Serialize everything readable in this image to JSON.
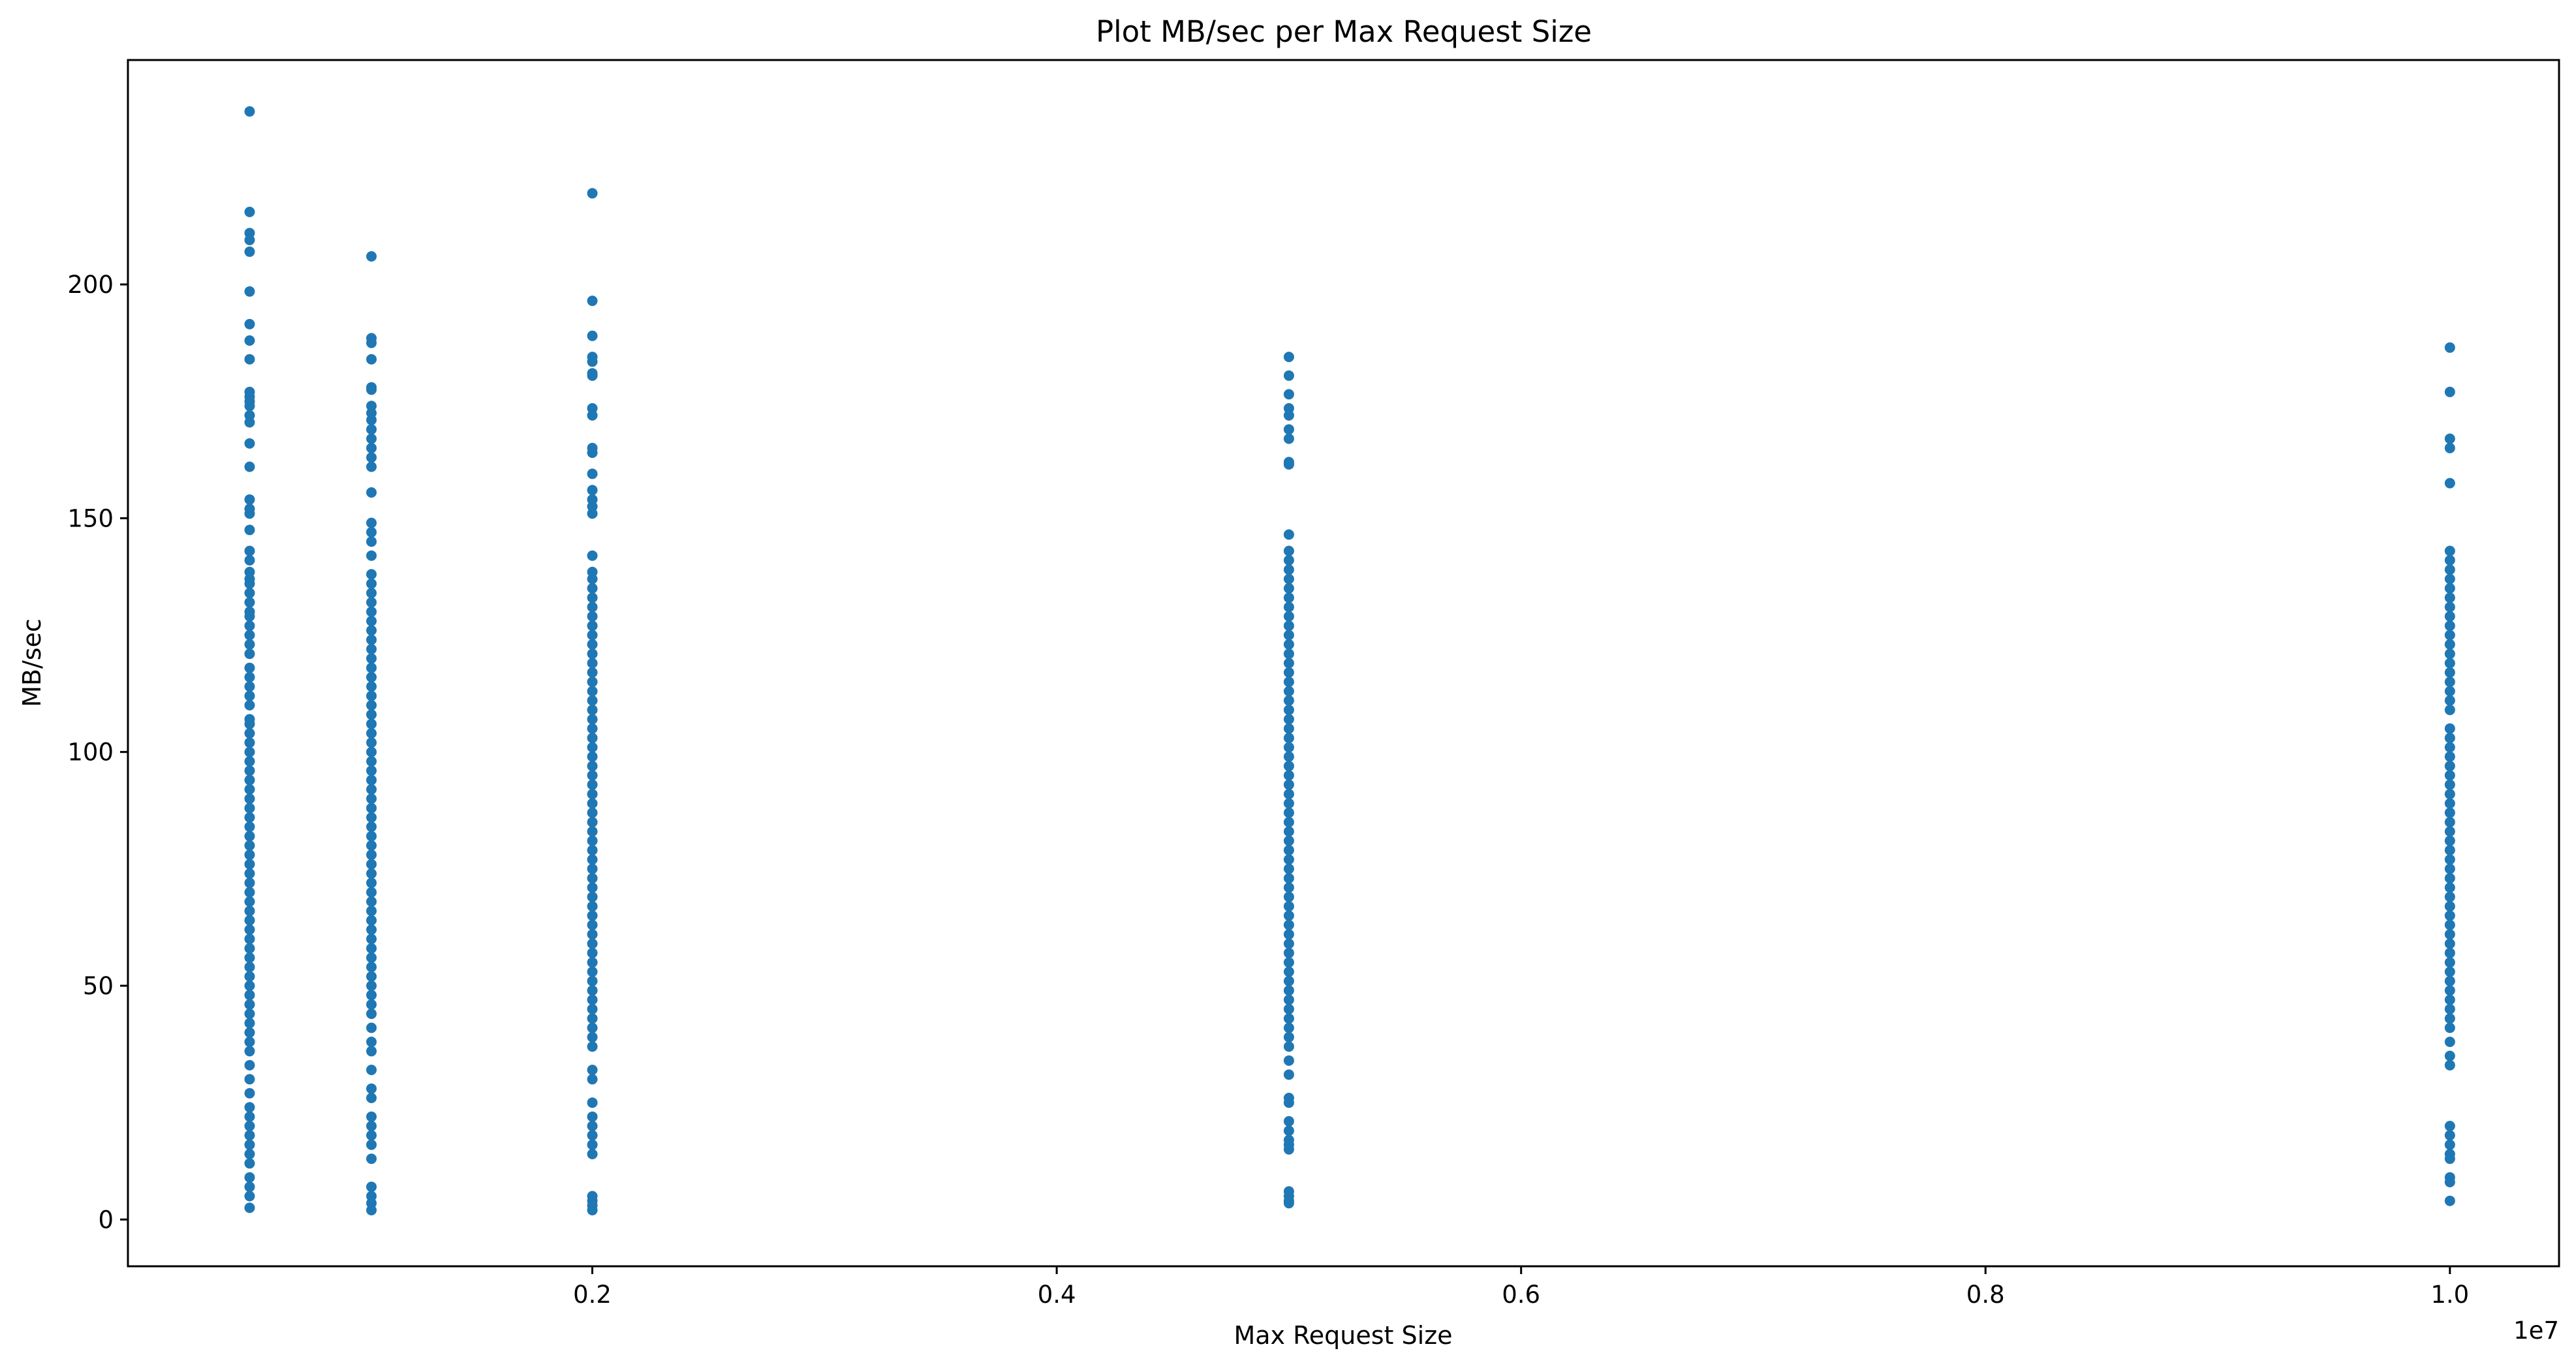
{
  "chart_data": {
    "type": "scatter",
    "title": "Plot MB/sec per Max Request Size",
    "xlabel": "Max Request Size",
    "ylabel": "MB/sec",
    "x_offset_label": "1e7",
    "xlim": [
      0,
      10470000
    ],
    "ylim": [
      -10,
      248
    ],
    "x_ticks": [
      0.2,
      0.4,
      0.6,
      0.8,
      1.0
    ],
    "x_tick_labels": [
      "0.2",
      "0.4",
      "0.6",
      "0.8",
      "1.0"
    ],
    "y_ticks": [
      0,
      50,
      100,
      150,
      200
    ],
    "y_tick_labels": [
      "0",
      "50",
      "100",
      "150",
      "200"
    ],
    "grid": false,
    "marker_color": "#1f77b4",
    "x_groups": [
      {
        "x": 524288,
        "points": [
          237,
          215.5,
          211,
          209.5,
          207,
          198.5,
          191.5,
          188,
          184,
          177,
          176,
          175,
          174,
          172,
          170.5,
          166,
          161,
          154,
          152,
          151,
          147.5,
          143,
          141,
          138.5,
          137,
          136,
          134,
          132,
          130,
          129,
          127,
          125,
          123,
          121,
          118,
          116,
          114,
          112,
          110,
          107,
          106,
          104,
          102,
          100,
          98,
          96,
          94,
          92,
          90,
          88,
          86,
          84,
          82,
          80,
          78,
          76,
          74,
          72,
          70,
          68,
          66,
          64,
          62,
          60,
          58,
          56,
          54,
          52,
          50,
          48,
          46,
          44,
          42,
          40,
          38,
          36,
          33,
          30,
          27,
          24,
          22,
          20,
          18,
          16,
          14,
          12,
          9,
          7,
          5,
          2.5
        ]
      },
      {
        "x": 1048576,
        "points": [
          206,
          188.5,
          187.5,
          184,
          178,
          177.5,
          174,
          172.5,
          171,
          169,
          167,
          165,
          163,
          161,
          155.5,
          149,
          147,
          145,
          142,
          138,
          136,
          134,
          132,
          130,
          128,
          126,
          124,
          122,
          120,
          118,
          116,
          114,
          112,
          110,
          108,
          106,
          104,
          102,
          100,
          98,
          96,
          94,
          92,
          90,
          88,
          86,
          84,
          82,
          80,
          78,
          76,
          74,
          72,
          70,
          68,
          66,
          64,
          62,
          60,
          58,
          56,
          54,
          52,
          50,
          48,
          46,
          44,
          41,
          38,
          36,
          32,
          28,
          26,
          22,
          20,
          18,
          16,
          13,
          7,
          5,
          3.5,
          2
        ]
      },
      {
        "x": 2000000,
        "points": [
          219.5,
          196.5,
          189,
          184.5,
          183.5,
          181,
          180.5,
          173.5,
          172,
          165,
          164,
          159.5,
          156,
          154,
          152.5,
          151,
          142,
          138.5,
          137,
          135,
          133,
          131,
          129,
          127,
          125,
          123,
          121,
          119,
          117,
          115,
          113,
          111,
          109,
          107,
          105,
          103,
          101,
          99,
          97,
          95,
          93,
          91,
          89,
          87,
          85,
          83,
          81,
          79,
          77,
          75,
          73,
          71,
          69,
          67,
          65,
          63,
          61,
          59,
          57,
          55,
          53,
          51,
          49,
          47,
          45,
          43,
          41,
          39,
          37,
          32,
          30,
          25,
          22,
          20,
          18,
          16,
          14,
          5,
          4,
          3,
          2
        ]
      },
      {
        "x": 5000000,
        "points": [
          184.5,
          180.5,
          176.5,
          173.5,
          172,
          169,
          167,
          162,
          161.5,
          146.5,
          143,
          141,
          139,
          137,
          135,
          133,
          131,
          129,
          127,
          125,
          123,
          121,
          119,
          117,
          115,
          113,
          111,
          109,
          107,
          105,
          103,
          101,
          99,
          97,
          95,
          93,
          91,
          89,
          87,
          85,
          83,
          81,
          79,
          77,
          75,
          73,
          71,
          69,
          67,
          65,
          63,
          61,
          59,
          57,
          55,
          53,
          51,
          49,
          47,
          45,
          43,
          41,
          39,
          37,
          34,
          31,
          26,
          25,
          21,
          19,
          17,
          16,
          15,
          6,
          5,
          4,
          3.5
        ]
      },
      {
        "x": 10000000,
        "points": [
          186.5,
          177,
          167,
          165,
          157.5,
          143,
          141,
          139,
          137,
          135,
          133,
          131,
          129,
          127,
          125,
          123,
          121,
          119,
          117,
          115,
          113,
          111,
          109,
          105,
          103,
          101,
          99,
          97,
          95,
          93,
          91,
          89,
          87,
          85,
          83,
          81,
          79,
          77,
          75,
          73,
          71,
          69,
          67,
          65,
          63,
          61,
          59,
          57,
          55,
          53,
          51,
          49,
          47,
          45,
          43,
          41,
          38,
          35,
          33,
          20,
          18,
          16,
          14,
          13,
          9,
          8,
          4
        ]
      }
    ]
  }
}
